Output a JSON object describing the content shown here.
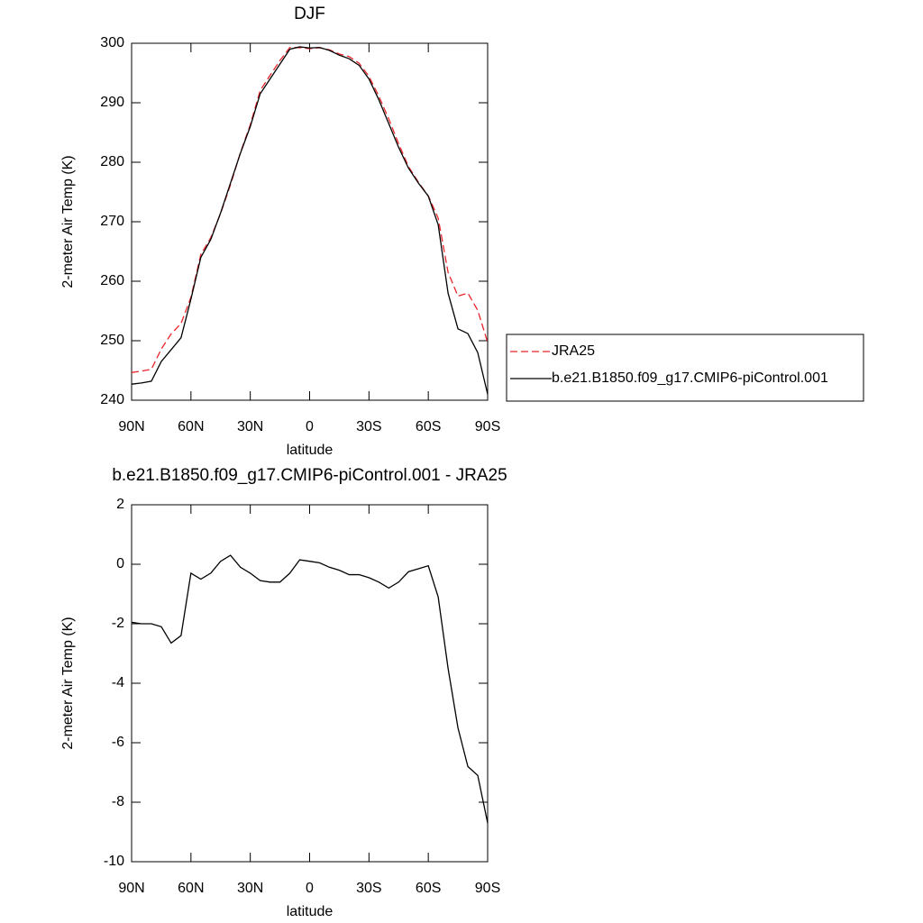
{
  "chart_data": [
    {
      "type": "line",
      "title": "DJF",
      "xlabel": "latitude",
      "ylabel": "2-meter Air Temp (K)",
      "x": [
        90,
        85,
        80,
        75,
        70,
        65,
        60,
        55,
        50,
        45,
        40,
        35,
        30,
        25,
        20,
        15,
        10,
        5,
        0,
        -5,
        -10,
        -15,
        -20,
        -25,
        -30,
        -35,
        -40,
        -45,
        -50,
        -55,
        -60,
        -65,
        -70,
        -75,
        -80,
        -85,
        -90
      ],
      "series": [
        {
          "name": "JRA25",
          "color": "#e8252b",
          "linestyle": "dashed",
          "values": [
            244.65,
            244.9,
            245.2,
            248.6,
            251.15,
            252.9,
            257.3,
            264.5,
            267.3,
            271.4,
            276.2,
            281.6,
            286.3,
            292.05,
            294.6,
            297.1,
            299.3,
            299.25,
            299.1,
            299.25,
            298.9,
            298.2,
            297.75,
            296.65,
            294.45,
            291.1,
            287.3,
            283.1,
            279.25,
            276.65,
            274.35,
            270.6,
            261.5,
            257.5,
            258,
            255.1,
            249.7
          ]
        },
        {
          "name": "b.e21.B1850.f09_g17.CMIP6-piControl.001",
          "color": "#000000",
          "linestyle": "solid",
          "values": [
            242.7,
            242.9,
            243.2,
            246.5,
            248.5,
            250.5,
            257,
            264,
            267,
            271.5,
            276.5,
            281.5,
            286,
            291.5,
            294,
            296.5,
            299,
            299.4,
            299.2,
            299.3,
            298.8,
            298,
            297.4,
            296.3,
            294,
            290.5,
            286.5,
            282.5,
            279,
            276.5,
            274.3,
            269.5,
            258,
            252,
            251.2,
            248,
            241
          ]
        }
      ],
      "xlim": [
        90,
        -90
      ],
      "xticks": [
        {
          "value": 90,
          "label": "90N"
        },
        {
          "value": 60,
          "label": "60N"
        },
        {
          "value": 30,
          "label": "30N"
        },
        0,
        {
          "value": -30,
          "label": "30S"
        },
        {
          "value": -60,
          "label": "60S"
        },
        {
          "value": -90,
          "label": "90S"
        }
      ],
      "ylim": [
        240,
        300
      ],
      "yticks": [
        240,
        250,
        260,
        270,
        280,
        290,
        300
      ],
      "legend": "outside right"
    },
    {
      "type": "line",
      "title": "b.e21.B1850.f09_g17.CMIP6-piControl.001 - JRA25",
      "xlabel": "latitude",
      "ylabel": "2-meter Air Temp (K)",
      "x": [
        90,
        85,
        80,
        75,
        70,
        65,
        60,
        55,
        50,
        45,
        40,
        35,
        30,
        25,
        20,
        15,
        10,
        5,
        0,
        -5,
        -10,
        -15,
        -20,
        -25,
        -30,
        -35,
        -40,
        -45,
        -50,
        -55,
        -60,
        -65,
        -70,
        -75,
        -80,
        -85,
        -90
      ],
      "series": [
        {
          "color": "#000000",
          "linestyle": "solid",
          "values": [
            -1.95,
            -2,
            -2,
            -2.1,
            -2.65,
            -2.4,
            -0.3,
            -0.5,
            -0.3,
            0.1,
            0.3,
            -0.1,
            -0.3,
            -0.55,
            -0.6,
            -0.6,
            -0.3,
            0.15,
            0.1,
            0.05,
            -0.1,
            -0.2,
            -0.35,
            -0.35,
            -0.45,
            -0.6,
            -0.8,
            -0.6,
            -0.25,
            -0.15,
            -0.05,
            -1.1,
            -3.5,
            -5.5,
            -6.8,
            -7.1,
            -8.7
          ]
        }
      ],
      "xlim": [
        90,
        -90
      ],
      "xticks": [
        {
          "value": 90,
          "label": "90N"
        },
        {
          "value": 60,
          "label": "60N"
        },
        {
          "value": 30,
          "label": "30N"
        },
        0,
        {
          "value": -30,
          "label": "30S"
        },
        {
          "value": -60,
          "label": "60S"
        },
        {
          "value": -90,
          "label": "90S"
        }
      ],
      "ylim": [
        -10,
        2
      ],
      "yticks": [
        -10,
        -8,
        -6,
        -4,
        -2,
        0,
        2
      ]
    }
  ]
}
